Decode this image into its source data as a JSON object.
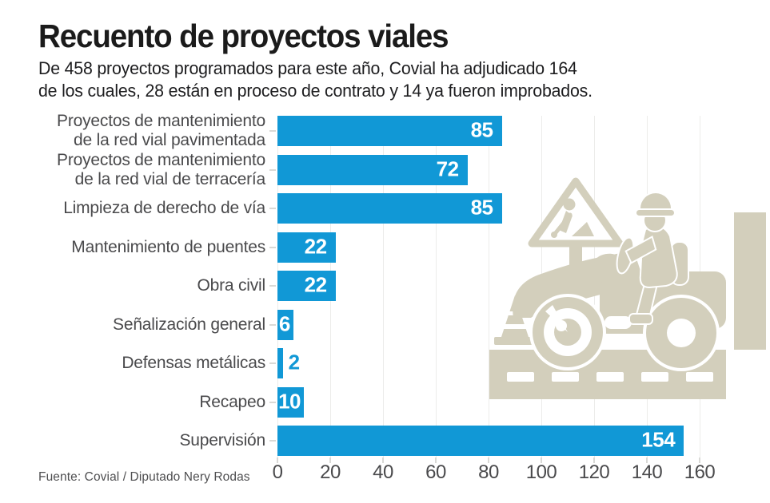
{
  "header": {
    "title": "Recuento de proyectos viales",
    "subtitle_line1": "De 458 proyectos programados para este año, Covial ha adjudicado 164",
    "subtitle_line2": "de los cuales, 28 están en proceso de contrato y 14 ya fueron improbados."
  },
  "footer": {
    "source": "Fuente: Covial / Diputado Nery Rodas"
  },
  "colors": {
    "bar": "#1198D6",
    "bar_value_inside": "#ffffff",
    "label_text": "#4a4a4c",
    "axis_text": "#4a4a4c",
    "gridline": "#ececea",
    "tick": "#d9d9d6",
    "illustration": "#d3cfbc",
    "title_text": "#1b1b1b"
  },
  "chart_data": {
    "type": "bar",
    "orientation": "horizontal",
    "title": "Recuento de proyectos viales",
    "xlabel": "",
    "ylabel": "",
    "xlim": [
      0,
      160
    ],
    "xticks": [
      0,
      20,
      40,
      60,
      80,
      100,
      120,
      140,
      160
    ],
    "grid": true,
    "categories": [
      "Proyectos de mantenimiento de la red vial pavimentada",
      "Proyectos de mantenimiento de la red vial de terracería",
      "Limpieza de derecho de vía",
      "Mantenimiento de puentes",
      "Obra civil",
      "Señalización general",
      "Defensas metálicas",
      "Recapeo",
      "Supervisión"
    ],
    "values": [
      85,
      72,
      85,
      22,
      22,
      6,
      2,
      10,
      154
    ],
    "items": [
      {
        "lines": [
          "Proyectos de mantenimiento",
          "de la red vial pavimentada"
        ],
        "value": 85,
        "value_inside": true
      },
      {
        "lines": [
          "Proyectos de mantenimiento",
          "de la red vial de terracería"
        ],
        "value": 72,
        "value_inside": true
      },
      {
        "lines": [
          "Limpieza de derecho de vía"
        ],
        "value": 85,
        "value_inside": true
      },
      {
        "lines": [
          "Mantenimiento de puentes"
        ],
        "value": 22,
        "value_inside": true
      },
      {
        "lines": [
          "Obra civil"
        ],
        "value": 22,
        "value_inside": true
      },
      {
        "lines": [
          "Señalización general"
        ],
        "value": 6,
        "value_inside": true
      },
      {
        "lines": [
          "Defensas metálicas"
        ],
        "value": 2,
        "value_inside": false
      },
      {
        "lines": [
          "Recapeo"
        ],
        "value": 10,
        "value_inside": true
      },
      {
        "lines": [
          "Supervisión"
        ],
        "value": 154,
        "value_inside": true
      }
    ]
  },
  "illustration": {
    "name": "road-construction-pictogram",
    "elements": [
      "roadworks-warning-sign",
      "worker-digging-glyph",
      "road-roller",
      "driver-with-hard-hat",
      "traffic-cone",
      "exhaust-stack",
      "road-with-dashed-lane-markings"
    ]
  }
}
